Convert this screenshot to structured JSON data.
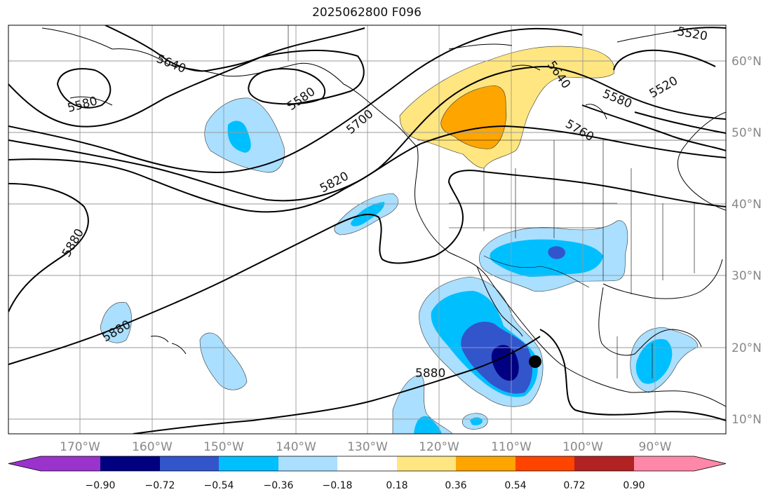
{
  "title": "2025062800 F096",
  "map": {
    "lon_labels": [
      "170°W",
      "160°W",
      "150°W",
      "140°W",
      "130°W",
      "120°W",
      "110°W",
      "100°W",
      "90°W"
    ],
    "lat_labels": [
      "60°N",
      "50°N",
      "40°N",
      "30°N",
      "20°N",
      "10°N"
    ],
    "contour_labels": [
      "5640",
      "5580",
      "5580",
      "5520",
      "5520",
      "5640",
      "5580",
      "5760",
      "5700",
      "5820",
      "5880",
      "5880",
      "5880"
    ]
  },
  "colorbar": {
    "tick_labels": [
      "−0.90",
      "−0.72",
      "−0.54",
      "−0.36",
      "−0.18",
      "0.18",
      "0.36",
      "0.54",
      "0.72",
      "0.90"
    ],
    "colors": [
      "#9933cc",
      "#000080",
      "#3355cc",
      "#00bfff",
      "#aadfff",
      "#ffffff",
      "#ffe680",
      "#ffa500",
      "#ff4400",
      "#b22222",
      "#ff88aa"
    ]
  },
  "colors": {
    "shade_pos_light": "#ffe680",
    "shade_pos_mid": "#ffa500",
    "shade_neg_light": "#aadfff",
    "shade_neg_mid": "#00bfff",
    "shade_neg_dark": "#3355cc",
    "shade_neg_darkest": "#000080"
  }
}
